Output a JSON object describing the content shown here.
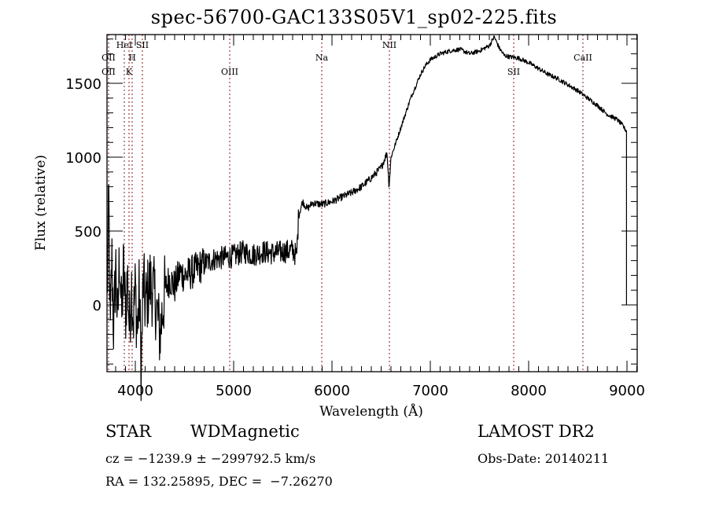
{
  "chart_data": {
    "type": "line",
    "title": "spec-56700-GAC133S05V1_sp02-225.fits",
    "xlabel": "Wavelength (Å)",
    "ylabel": "Flux (relative)",
    "xlim": [
      3712,
      9104
    ],
    "ylim": [
      -452,
      1830
    ],
    "xticks": [
      4000,
      5000,
      6000,
      7000,
      8000,
      9000
    ],
    "xtick_labels": [
      "4000",
      "5000",
      "6000",
      "7000",
      "8000",
      "9000"
    ],
    "xminor_step": 100,
    "yticks": [
      0,
      500,
      1000,
      1500
    ],
    "ytick_labels": [
      "0",
      "500",
      "1000",
      "1500"
    ],
    "yminor_step": 100,
    "grid": false,
    "series": [
      {
        "name": "spectrum",
        "color": "#000000",
        "points": [
          [
            3715,
            80
          ],
          [
            3730,
            720
          ],
          [
            3745,
            -250
          ],
          [
            3760,
            350
          ],
          [
            3780,
            -200
          ],
          [
            3800,
            300
          ],
          [
            3820,
            -150
          ],
          [
            3840,
            380
          ],
          [
            3860,
            -100
          ],
          [
            3880,
            250
          ],
          [
            3900,
            -50
          ],
          [
            3920,
            200
          ],
          [
            3940,
            -170
          ],
          [
            3960,
            160
          ],
          [
            3980,
            -100
          ],
          [
            4000,
            120
          ],
          [
            4020,
            -200
          ],
          [
            4040,
            100
          ],
          [
            4060,
            -450
          ],
          [
            4080,
            180
          ],
          [
            4100,
            0
          ],
          [
            4150,
            150
          ],
          [
            4200,
            50
          ],
          [
            4250,
            -200
          ],
          [
            4300,
            100
          ],
          [
            4350,
            180
          ],
          [
            4400,
            120
          ],
          [
            4450,
            220
          ],
          [
            4500,
            200
          ],
          [
            4600,
            230
          ],
          [
            4700,
            280
          ],
          [
            4800,
            310
          ],
          [
            4900,
            320
          ],
          [
            5000,
            330
          ],
          [
            5100,
            360
          ],
          [
            5200,
            340
          ],
          [
            5300,
            360
          ],
          [
            5400,
            350
          ],
          [
            5500,
            360
          ],
          [
            5600,
            370
          ],
          [
            5640,
            330
          ],
          [
            5660,
            600
          ],
          [
            5700,
            700
          ],
          [
            5750,
            650
          ],
          [
            5800,
            690
          ],
          [
            5900,
            680
          ],
          [
            6000,
            700
          ],
          [
            6100,
            730
          ],
          [
            6200,
            760
          ],
          [
            6300,
            800
          ],
          [
            6400,
            860
          ],
          [
            6500,
            930
          ],
          [
            6560,
            1030
          ],
          [
            6580,
            800
          ],
          [
            6600,
            1000
          ],
          [
            6650,
            1100
          ],
          [
            6700,
            1200
          ],
          [
            6750,
            1300
          ],
          [
            6800,
            1400
          ],
          [
            6850,
            1480
          ],
          [
            6900,
            1560
          ],
          [
            6950,
            1620
          ],
          [
            7000,
            1660
          ],
          [
            7100,
            1700
          ],
          [
            7200,
            1720
          ],
          [
            7300,
            1730
          ],
          [
            7400,
            1700
          ],
          [
            7500,
            1720
          ],
          [
            7600,
            1755
          ],
          [
            7650,
            1815
          ],
          [
            7700,
            1740
          ],
          [
            7750,
            1690
          ],
          [
            7800,
            1680
          ],
          [
            7900,
            1670
          ],
          [
            8000,
            1640
          ],
          [
            8100,
            1600
          ],
          [
            8200,
            1560
          ],
          [
            8300,
            1530
          ],
          [
            8400,
            1490
          ],
          [
            8500,
            1450
          ],
          [
            8600,
            1400
          ],
          [
            8700,
            1350
          ],
          [
            8800,
            1290
          ],
          [
            8900,
            1255
          ],
          [
            8950,
            1220
          ],
          [
            8990,
            1180
          ],
          [
            8995,
            0
          ]
        ],
        "noise": [
          {
            "from": 3712,
            "to": 4300,
            "amplitude": 260
          },
          {
            "from": 4300,
            "to": 4700,
            "amplitude": 120
          },
          {
            "from": 4700,
            "to": 5660,
            "amplitude": 80
          },
          {
            "from": 5660,
            "to": 6600,
            "amplitude": 25
          },
          {
            "from": 6600,
            "to": 8995,
            "amplitude": 15
          }
        ]
      }
    ],
    "line_markers": {
      "color": "#8b1a1a",
      "lines": [
        3728,
        3888,
        3936,
        3968,
        4072,
        4960,
        5896,
        6584,
        7848,
        8552
      ],
      "labels": [
        {
          "text": "HeI",
          "wavelength": 3888,
          "row": 1
        },
        {
          "text": "SII",
          "wavelength": 4072,
          "row": 1
        },
        {
          "text": "NII",
          "wavelength": 6584,
          "row": 1
        },
        {
          "text": "OII",
          "wavelength": 3728,
          "row": 2
        },
        {
          "text": "H",
          "wavelength": 3968,
          "row": 2
        },
        {
          "text": "Na",
          "wavelength": 5896,
          "row": 2
        },
        {
          "text": "CaII",
          "wavelength": 8552,
          "row": 2
        },
        {
          "text": "OII",
          "wavelength": 3728,
          "row": 3
        },
        {
          "text": "K",
          "wavelength": 3936,
          "row": 3
        },
        {
          "text": "OIII",
          "wavelength": 4960,
          "row": 3
        },
        {
          "text": "SII",
          "wavelength": 7848,
          "row": 3
        }
      ]
    }
  },
  "info": {
    "class": "STAR",
    "subclass": "WDMagnetic",
    "cz": "cz = −1239.9 ± −299792.5 km/s",
    "radec": "RA = 132.25895, DEC =  −7.26270",
    "survey": "LAMOST DR2",
    "obs_date": "Obs-Date: 20140211"
  }
}
